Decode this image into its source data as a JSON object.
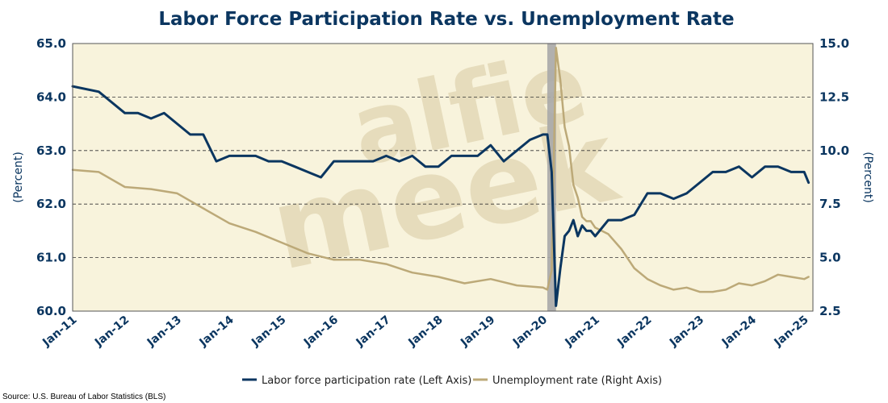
{
  "colors": {
    "lfpr": "#0b3660",
    "unrate": "#bca978",
    "plot_bg": "#f8f3dc",
    "title": "#0b3660",
    "recession": "#a9a9a9",
    "watermark": "#e6dcbc"
  },
  "watermark": {
    "line1": "alfie",
    "line2": "meek"
  },
  "source": "Source: U.S. Bureau of Labor Statistics (BLS)",
  "chart_data": {
    "type": "line",
    "title": "Labor Force Participation Rate vs. Unemployment Rate",
    "y_left_label": "(Percent)",
    "y_right_label": "(Percent)",
    "y_left_range": [
      60.0,
      65.0
    ],
    "y_right_range": [
      2.5,
      15.0
    ],
    "y_left_ticks": [
      "60.0",
      "61.0",
      "62.0",
      "63.0",
      "64.0",
      "65.0"
    ],
    "y_right_ticks": [
      "2.5",
      "5.0",
      "7.5",
      "10.0",
      "12.5",
      "15.0"
    ],
    "x_range": [
      "Jan-11",
      "Mar-25"
    ],
    "x_ticks": [
      "Jan-11",
      "Jan-12",
      "Jan-13",
      "Jan-14",
      "Jan-15",
      "Jan-16",
      "Jan-17",
      "Jan-18",
      "Jan-19",
      "Jan-20",
      "Jan-21",
      "Jan-22",
      "Jan-23",
      "Jan-24",
      "Jan-25"
    ],
    "grid": "horizontal dashed",
    "legend_position": "bottom",
    "recession_band": {
      "start": "Feb-20",
      "end": "Apr-20"
    },
    "series": [
      {
        "name": "Labor force participation rate (Left Axis)",
        "axis": "left",
        "points": [
          [
            "Jan-11",
            64.2
          ],
          [
            "Jul-11",
            64.1
          ],
          [
            "Jan-12",
            63.7
          ],
          [
            "Apr-12",
            63.7
          ],
          [
            "Jul-12",
            63.6
          ],
          [
            "Oct-12",
            63.7
          ],
          [
            "Jan-13",
            63.5
          ],
          [
            "Apr-13",
            63.3
          ],
          [
            "Jul-13",
            63.3
          ],
          [
            "Oct-13",
            62.8
          ],
          [
            "Jan-14",
            62.9
          ],
          [
            "Apr-14",
            62.9
          ],
          [
            "Jul-14",
            62.9
          ],
          [
            "Oct-14",
            62.8
          ],
          [
            "Jan-15",
            62.8
          ],
          [
            "Apr-15",
            62.7
          ],
          [
            "Jul-15",
            62.6
          ],
          [
            "Oct-15",
            62.5
          ],
          [
            "Jan-16",
            62.8
          ],
          [
            "Apr-16",
            62.8
          ],
          [
            "Jul-16",
            62.8
          ],
          [
            "Oct-16",
            62.8
          ],
          [
            "Jan-17",
            62.9
          ],
          [
            "Apr-17",
            62.8
          ],
          [
            "Jul-17",
            62.9
          ],
          [
            "Oct-17",
            62.7
          ],
          [
            "Jan-18",
            62.7
          ],
          [
            "Apr-18",
            62.9
          ],
          [
            "Jul-18",
            62.9
          ],
          [
            "Oct-18",
            62.9
          ],
          [
            "Jan-19",
            63.1
          ],
          [
            "Apr-19",
            62.8
          ],
          [
            "Jul-19",
            63.0
          ],
          [
            "Oct-19",
            63.2
          ],
          [
            "Jan-20",
            63.3
          ],
          [
            "Feb-20",
            63.3
          ],
          [
            "Mar-20",
            62.6
          ],
          [
            "Apr-20",
            60.1
          ],
          [
            "May-20",
            60.8
          ],
          [
            "Jun-20",
            61.4
          ],
          [
            "Jul-20",
            61.5
          ],
          [
            "Aug-20",
            61.7
          ],
          [
            "Sep-20",
            61.4
          ],
          [
            "Oct-20",
            61.6
          ],
          [
            "Nov-20",
            61.5
          ],
          [
            "Dec-20",
            61.5
          ],
          [
            "Jan-21",
            61.4
          ],
          [
            "Apr-21",
            61.7
          ],
          [
            "Jul-21",
            61.7
          ],
          [
            "Oct-21",
            61.8
          ],
          [
            "Jan-22",
            62.2
          ],
          [
            "Apr-22",
            62.2
          ],
          [
            "Jul-22",
            62.1
          ],
          [
            "Oct-22",
            62.2
          ],
          [
            "Jan-23",
            62.4
          ],
          [
            "Apr-23",
            62.6
          ],
          [
            "Jul-23",
            62.6
          ],
          [
            "Oct-23",
            62.7
          ],
          [
            "Jan-24",
            62.5
          ],
          [
            "Apr-24",
            62.7
          ],
          [
            "Jul-24",
            62.7
          ],
          [
            "Oct-24",
            62.6
          ],
          [
            "Jan-25",
            62.6
          ],
          [
            "Feb-25",
            62.4
          ]
        ]
      },
      {
        "name": "Unemployment rate (Right Axis)",
        "axis": "right",
        "points": [
          [
            "Jan-11",
            9.1
          ],
          [
            "Jul-11",
            9.0
          ],
          [
            "Jan-12",
            8.3
          ],
          [
            "Jul-12",
            8.2
          ],
          [
            "Jan-13",
            8.0
          ],
          [
            "Jul-13",
            7.3
          ],
          [
            "Jan-14",
            6.6
          ],
          [
            "Jul-14",
            6.2
          ],
          [
            "Jan-15",
            5.7
          ],
          [
            "Jul-15",
            5.2
          ],
          [
            "Jan-16",
            4.9
          ],
          [
            "Jul-16",
            4.9
          ],
          [
            "Jan-17",
            4.7
          ],
          [
            "Jul-17",
            4.3
          ],
          [
            "Jan-18",
            4.1
          ],
          [
            "Jul-18",
            3.8
          ],
          [
            "Jan-19",
            4.0
          ],
          [
            "Jul-19",
            3.7
          ],
          [
            "Jan-20",
            3.6
          ],
          [
            "Feb-20",
            3.5
          ],
          [
            "Mar-20",
            4.4
          ],
          [
            "Apr-20",
            14.8
          ],
          [
            "May-20",
            13.3
          ],
          [
            "Jun-20",
            11.1
          ],
          [
            "Jul-20",
            10.2
          ],
          [
            "Aug-20",
            8.4
          ],
          [
            "Sep-20",
            7.8
          ],
          [
            "Oct-20",
            6.9
          ],
          [
            "Nov-20",
            6.7
          ],
          [
            "Dec-20",
            6.7
          ],
          [
            "Jan-21",
            6.4
          ],
          [
            "Apr-21",
            6.1
          ],
          [
            "Jul-21",
            5.4
          ],
          [
            "Oct-21",
            4.5
          ],
          [
            "Jan-22",
            4.0
          ],
          [
            "Apr-22",
            3.7
          ],
          [
            "Jul-22",
            3.5
          ],
          [
            "Oct-22",
            3.6
          ],
          [
            "Jan-23",
            3.4
          ],
          [
            "Apr-23",
            3.4
          ],
          [
            "Jul-23",
            3.5
          ],
          [
            "Oct-23",
            3.8
          ],
          [
            "Jan-24",
            3.7
          ],
          [
            "Apr-24",
            3.9
          ],
          [
            "Jul-24",
            4.2
          ],
          [
            "Oct-24",
            4.1
          ],
          [
            "Jan-25",
            4.0
          ],
          [
            "Feb-25",
            4.1
          ]
        ]
      }
    ]
  }
}
